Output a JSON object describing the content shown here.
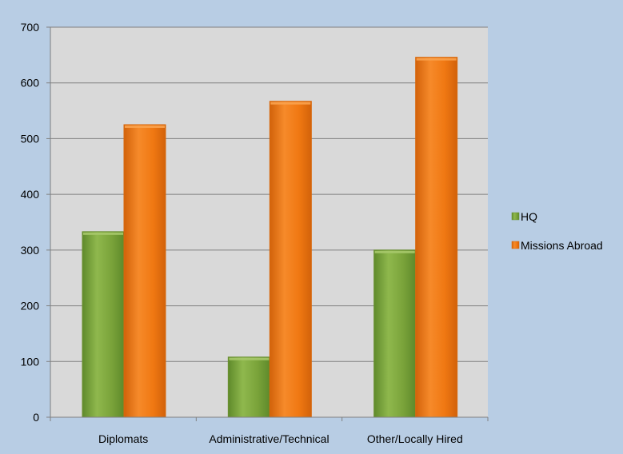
{
  "chart_data": {
    "type": "bar",
    "categories": [
      "Diplomats",
      "Administrative/Technical",
      "Other/Locally Hired"
    ],
    "series": [
      {
        "name": "HQ",
        "values": [
          333,
          108,
          300
        ],
        "color": "#7aa33a"
      },
      {
        "name": "Missions Abroad",
        "values": [
          525,
          567,
          646
        ],
        "color": "#f07812"
      }
    ],
    "ylim": [
      0,
      700
    ],
    "yticks": [
      0,
      100,
      200,
      300,
      400,
      500,
      600,
      700
    ],
    "grid": true,
    "legend_position": "right",
    "title": "",
    "xlabel": "",
    "ylabel": ""
  },
  "colors": {
    "background": "#b8cde4",
    "plot_area": "#d9d9d9",
    "gridline": "#808080"
  }
}
